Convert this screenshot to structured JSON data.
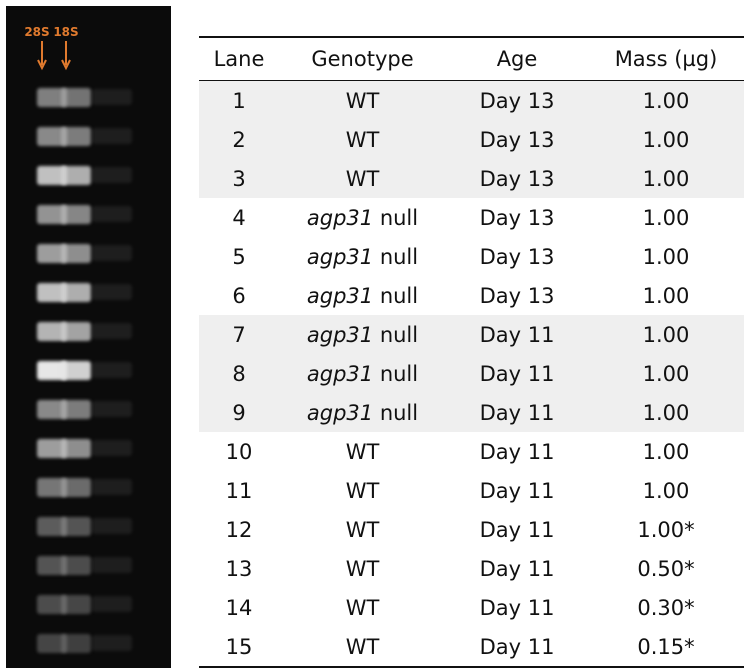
{
  "gel": {
    "markers": [
      {
        "label": "28S",
        "color": "#e07a2e"
      },
      {
        "label": "18S",
        "color": "#e07a2e"
      }
    ],
    "lane_intensity": [
      0.55,
      0.6,
      0.85,
      0.65,
      0.7,
      0.85,
      0.8,
      1.0,
      0.6,
      0.7,
      0.5,
      0.35,
      0.3,
      0.25,
      0.2
    ]
  },
  "table": {
    "headers": [
      "Lane",
      "Genotype",
      "Age",
      "Mass (µg)"
    ],
    "rows": [
      {
        "lane": "1",
        "genotype_italic": "",
        "genotype": "WT",
        "age": "Day 13",
        "mass": "1.00",
        "shaded": true
      },
      {
        "lane": "2",
        "genotype_italic": "",
        "genotype": "WT",
        "age": "Day 13",
        "mass": "1.00",
        "shaded": true
      },
      {
        "lane": "3",
        "genotype_italic": "",
        "genotype": "WT",
        "age": "Day 13",
        "mass": "1.00",
        "shaded": true
      },
      {
        "lane": "4",
        "genotype_italic": "agp31",
        "genotype": " null",
        "age": "Day 13",
        "mass": "1.00",
        "shaded": false
      },
      {
        "lane": "5",
        "genotype_italic": "agp31",
        "genotype": " null",
        "age": "Day 13",
        "mass": "1.00",
        "shaded": false
      },
      {
        "lane": "6",
        "genotype_italic": "agp31",
        "genotype": " null",
        "age": "Day 13",
        "mass": "1.00",
        "shaded": false
      },
      {
        "lane": "7",
        "genotype_italic": "agp31",
        "genotype": " null",
        "age": "Day 11",
        "mass": "1.00",
        "shaded": true
      },
      {
        "lane": "8",
        "genotype_italic": "agp31",
        "genotype": " null",
        "age": "Day 11",
        "mass": "1.00",
        "shaded": true
      },
      {
        "lane": "9",
        "genotype_italic": "agp31",
        "genotype": " null",
        "age": "Day 11",
        "mass": "1.00",
        "shaded": true
      },
      {
        "lane": "10",
        "genotype_italic": "",
        "genotype": "WT",
        "age": "Day 11",
        "mass": "1.00",
        "shaded": false
      },
      {
        "lane": "11",
        "genotype_italic": "",
        "genotype": "WT",
        "age": "Day 11",
        "mass": "1.00",
        "shaded": false
      },
      {
        "lane": "12",
        "genotype_italic": "",
        "genotype": "WT",
        "age": "Day 11",
        "mass": "1.00*",
        "shaded": false
      },
      {
        "lane": "13",
        "genotype_italic": "",
        "genotype": "WT",
        "age": "Day 11",
        "mass": "0.50*",
        "shaded": false
      },
      {
        "lane": "14",
        "genotype_italic": "",
        "genotype": "WT",
        "age": "Day 11",
        "mass": "0.30*",
        "shaded": false
      },
      {
        "lane": "15",
        "genotype_italic": "",
        "genotype": "WT",
        "age": "Day 11",
        "mass": "0.15*",
        "shaded": false
      }
    ]
  }
}
